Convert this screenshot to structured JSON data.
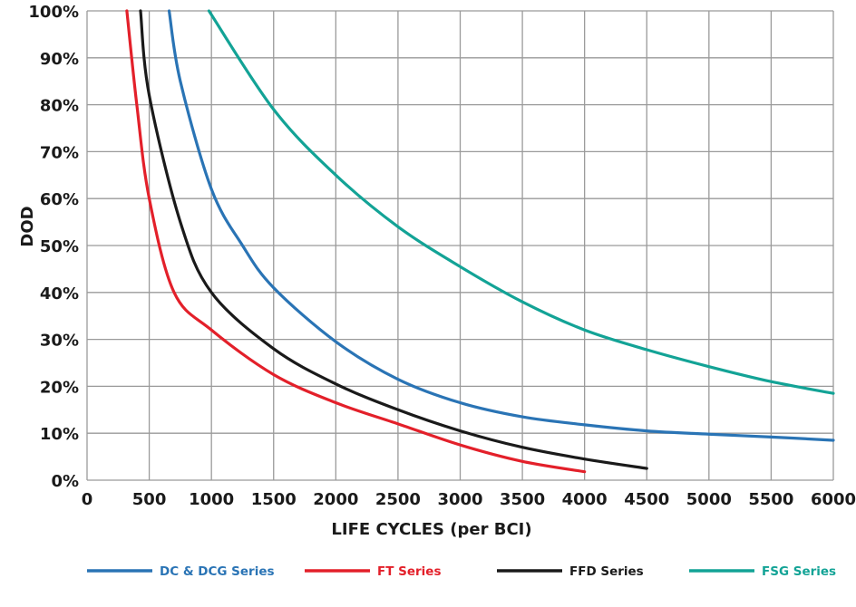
{
  "chart_data": {
    "type": "line",
    "title": "",
    "xlabel": "LIFE CYCLES (per BCI)",
    "ylabel": "DOD",
    "xlim": [
      0,
      6000
    ],
    "ylim": [
      0,
      100
    ],
    "grid": true,
    "legend_position": "bottom",
    "x_ticks": [
      "0",
      "500",
      "1000",
      "1500",
      "2000",
      "2500",
      "3000",
      "3500",
      "4000",
      "4500",
      "5000",
      "5500",
      "6000"
    ],
    "y_ticks": [
      "0%",
      "10%",
      "20%",
      "30%",
      "40%",
      "50%",
      "60%",
      "70%",
      "80%",
      "90%",
      "100%"
    ],
    "series": [
      {
        "name": "DC & DCG Series",
        "color": "#2a74b5",
        "points": [
          [
            660,
            100
          ],
          [
            750,
            85
          ],
          [
            1000,
            62
          ],
          [
            1250,
            50
          ],
          [
            1500,
            41
          ],
          [
            2000,
            29.5
          ],
          [
            2500,
            21.5
          ],
          [
            3000,
            16.5
          ],
          [
            3500,
            13.5
          ],
          [
            4000,
            11.8
          ],
          [
            4500,
            10.5
          ],
          [
            5000,
            9.8
          ],
          [
            5500,
            9.2
          ],
          [
            6000,
            8.5
          ]
        ]
      },
      {
        "name": "FT Series",
        "color": "#e3202a",
        "points": [
          [
            320,
            100
          ],
          [
            400,
            80
          ],
          [
            500,
            60
          ],
          [
            700,
            40
          ],
          [
            1000,
            32
          ],
          [
            1500,
            22.5
          ],
          [
            2000,
            16.5
          ],
          [
            2500,
            12
          ],
          [
            3000,
            7.5
          ],
          [
            3500,
            4
          ],
          [
            4000,
            1.8
          ]
        ]
      },
      {
        "name": "FFD Series",
        "color": "#1a1a1a",
        "points": [
          [
            430,
            100
          ],
          [
            500,
            82
          ],
          [
            750,
            55
          ],
          [
            1000,
            40
          ],
          [
            1500,
            28
          ],
          [
            2000,
            20.5
          ],
          [
            2500,
            15
          ],
          [
            3000,
            10.5
          ],
          [
            3500,
            7
          ],
          [
            4000,
            4.5
          ],
          [
            4500,
            2.5
          ]
        ]
      },
      {
        "name": "FSG Series",
        "color": "#13a396",
        "points": [
          [
            980,
            100
          ],
          [
            1500,
            79
          ],
          [
            2000,
            65
          ],
          [
            2500,
            54
          ],
          [
            3000,
            45.5
          ],
          [
            3500,
            38
          ],
          [
            4000,
            32
          ],
          [
            4500,
            27.8
          ],
          [
            5000,
            24.2
          ],
          [
            5500,
            21
          ],
          [
            6000,
            18.5
          ]
        ]
      }
    ]
  }
}
